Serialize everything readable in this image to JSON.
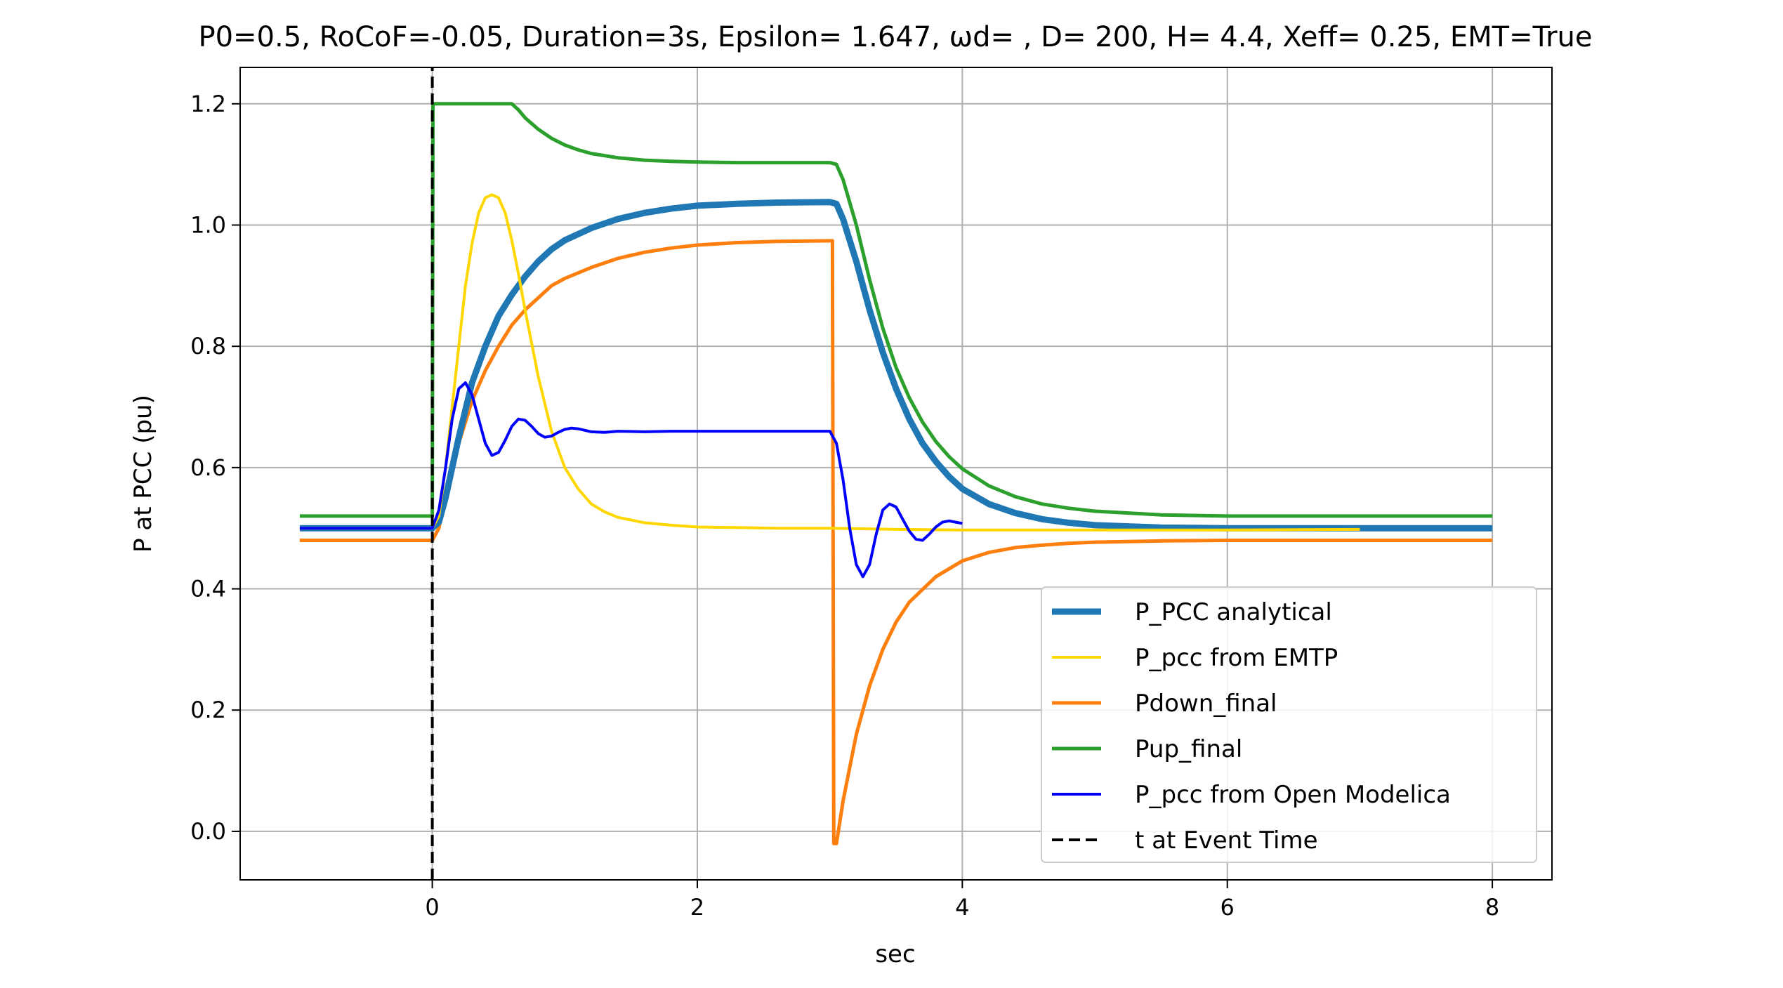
{
  "chart_data": {
    "type": "line",
    "title": "P0=0.5, RoCoF=-0.05, Duration=3s, Epsilon= 1.647, ωd= , D= 200, H= 4.4, Xeff= 0.25, EMT=True",
    "xlabel": "sec",
    "ylabel": "P at PCC (pu)",
    "xlim": [
      -1.45,
      8.45
    ],
    "ylim": [
      -0.08,
      1.26
    ],
    "xticks": [
      0,
      2,
      4,
      6,
      8
    ],
    "yticks": [
      0.0,
      0.2,
      0.4,
      0.6,
      0.8,
      1.0,
      1.2
    ],
    "xtick_labels": [
      "0",
      "2",
      "4",
      "6",
      "8"
    ],
    "ytick_labels": [
      "0.0",
      "0.2",
      "0.4",
      "0.6",
      "0.8",
      "1.0",
      "1.2"
    ],
    "grid": true,
    "legend_position": "bottom-right",
    "series": [
      {
        "name": "P_PCC analytical",
        "color": "#1f77b4",
        "x": [
          -1.0,
          0.0,
          0.05,
          0.1,
          0.2,
          0.3,
          0.4,
          0.5,
          0.6,
          0.7,
          0.8,
          0.9,
          1.0,
          1.2,
          1.4,
          1.6,
          1.8,
          2.0,
          2.3,
          2.6,
          3.0,
          3.05,
          3.1,
          3.2,
          3.3,
          3.4,
          3.5,
          3.6,
          3.7,
          3.8,
          3.9,
          4.0,
          4.2,
          4.4,
          4.6,
          4.8,
          5.0,
          5.5,
          6.0,
          7.0,
          8.0
        ],
        "y": [
          0.5,
          0.5,
          0.51,
          0.55,
          0.65,
          0.74,
          0.8,
          0.85,
          0.885,
          0.915,
          0.94,
          0.96,
          0.975,
          0.995,
          1.01,
          1.02,
          1.027,
          1.032,
          1.035,
          1.037,
          1.038,
          1.035,
          1.01,
          0.94,
          0.86,
          0.79,
          0.73,
          0.68,
          0.64,
          0.61,
          0.585,
          0.565,
          0.54,
          0.525,
          0.515,
          0.509,
          0.505,
          0.501,
          0.5,
          0.5,
          0.5
        ]
      },
      {
        "name": "P_pcc from EMTP",
        "color": "#ffd700",
        "x": [
          -1.0,
          0.0,
          0.05,
          0.1,
          0.15,
          0.2,
          0.25,
          0.3,
          0.35,
          0.4,
          0.45,
          0.5,
          0.55,
          0.6,
          0.65,
          0.7,
          0.8,
          0.9,
          1.0,
          1.1,
          1.2,
          1.3,
          1.4,
          1.6,
          1.8,
          2.0,
          2.3,
          2.6,
          3.0,
          3.5,
          4.0,
          5.0,
          6.0,
          7.0
        ],
        "y": [
          0.5,
          0.5,
          0.52,
          0.6,
          0.7,
          0.8,
          0.9,
          0.97,
          1.02,
          1.045,
          1.05,
          1.045,
          1.02,
          0.975,
          0.92,
          0.86,
          0.75,
          0.66,
          0.6,
          0.565,
          0.54,
          0.527,
          0.518,
          0.509,
          0.505,
          0.502,
          0.501,
          0.5,
          0.5,
          0.498,
          0.497,
          0.497,
          0.497,
          0.498
        ]
      },
      {
        "name": "Pdown_final",
        "color": "#ff7f0e",
        "x": [
          -1.0,
          0.0,
          0.05,
          0.1,
          0.2,
          0.3,
          0.4,
          0.5,
          0.6,
          0.7,
          0.8,
          0.9,
          1.0,
          1.2,
          1.4,
          1.6,
          1.8,
          2.0,
          2.3,
          2.6,
          3.0,
          3.02,
          3.03,
          3.05,
          3.1,
          3.2,
          3.3,
          3.4,
          3.5,
          3.6,
          3.8,
          4.0,
          4.2,
          4.4,
          4.6,
          4.8,
          5.0,
          5.5,
          6.0,
          7.0,
          8.0
        ],
        "y": [
          0.48,
          0.48,
          0.5,
          0.56,
          0.64,
          0.71,
          0.76,
          0.8,
          0.835,
          0.86,
          0.88,
          0.9,
          0.912,
          0.93,
          0.945,
          0.955,
          0.962,
          0.967,
          0.971,
          0.973,
          0.974,
          0.974,
          -0.02,
          -0.02,
          0.05,
          0.16,
          0.24,
          0.3,
          0.345,
          0.378,
          0.42,
          0.446,
          0.46,
          0.468,
          0.472,
          0.475,
          0.477,
          0.479,
          0.48,
          0.48,
          0.48
        ]
      },
      {
        "name": "Pup_final",
        "color": "#2ca02c",
        "x": [
          -1.0,
          0.0,
          0.005,
          0.01,
          0.6,
          0.65,
          0.7,
          0.8,
          0.9,
          1.0,
          1.1,
          1.2,
          1.4,
          1.6,
          1.8,
          2.0,
          2.3,
          2.6,
          3.0,
          3.05,
          3.1,
          3.2,
          3.3,
          3.4,
          3.5,
          3.6,
          3.7,
          3.8,
          3.9,
          4.0,
          4.2,
          4.4,
          4.6,
          4.8,
          5.0,
          5.5,
          6.0,
          7.0,
          8.0
        ],
        "y": [
          0.52,
          0.52,
          1.2,
          1.2,
          1.2,
          1.19,
          1.177,
          1.158,
          1.143,
          1.132,
          1.124,
          1.118,
          1.111,
          1.107,
          1.105,
          1.104,
          1.103,
          1.103,
          1.103,
          1.1,
          1.075,
          1.0,
          0.91,
          0.83,
          0.765,
          0.715,
          0.675,
          0.643,
          0.618,
          0.598,
          0.57,
          0.552,
          0.54,
          0.533,
          0.528,
          0.522,
          0.52,
          0.52,
          0.52
        ]
      },
      {
        "name": "P_pcc from Open Modelica",
        "color": "#0000ff",
        "x": [
          -1.0,
          0.0,
          0.05,
          0.1,
          0.15,
          0.2,
          0.25,
          0.3,
          0.35,
          0.4,
          0.45,
          0.5,
          0.55,
          0.6,
          0.65,
          0.7,
          0.75,
          0.8,
          0.85,
          0.9,
          0.95,
          1.0,
          1.05,
          1.1,
          1.2,
          1.3,
          1.4,
          1.6,
          1.8,
          2.0,
          2.5,
          3.0,
          3.05,
          3.1,
          3.15,
          3.2,
          3.25,
          3.3,
          3.35,
          3.4,
          3.45,
          3.5,
          3.55,
          3.6,
          3.65,
          3.7,
          3.75,
          3.8,
          3.85,
          3.9,
          3.95,
          4.0
        ],
        "y": [
          0.5,
          0.5,
          0.53,
          0.6,
          0.68,
          0.73,
          0.74,
          0.72,
          0.68,
          0.64,
          0.62,
          0.625,
          0.645,
          0.668,
          0.68,
          0.678,
          0.668,
          0.656,
          0.65,
          0.652,
          0.658,
          0.663,
          0.665,
          0.664,
          0.659,
          0.658,
          0.66,
          0.659,
          0.66,
          0.66,
          0.66,
          0.66,
          0.64,
          0.58,
          0.5,
          0.44,
          0.42,
          0.44,
          0.49,
          0.53,
          0.54,
          0.535,
          0.515,
          0.495,
          0.482,
          0.48,
          0.49,
          0.502,
          0.51,
          0.512,
          0.51,
          0.508
        ]
      },
      {
        "name": "t at Event Time",
        "color": "#000000",
        "x": [
          0.0,
          0.0
        ],
        "y": [
          -0.08,
          1.26
        ]
      }
    ]
  }
}
